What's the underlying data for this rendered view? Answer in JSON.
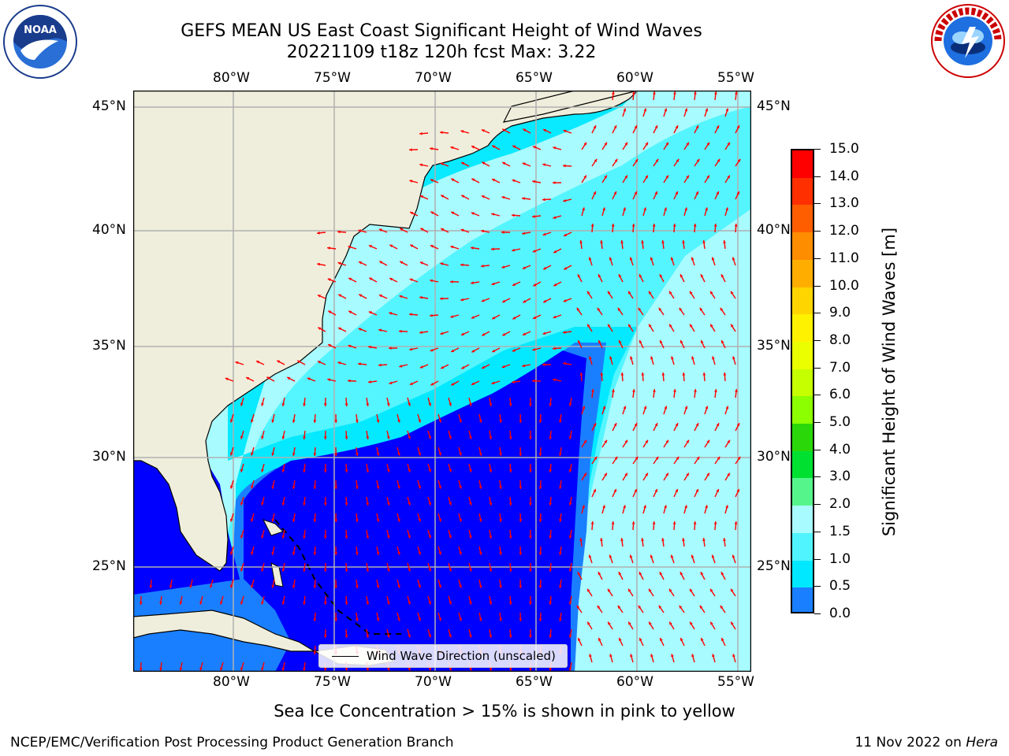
{
  "title": {
    "line1": "GEFS MEAN US East Coast Significant Height of Wind Waves",
    "line2": "20221109 t18z 120h fcst   Max: 3.22"
  },
  "logos": {
    "left": {
      "name": "noaa-logo",
      "text": "NOAA"
    },
    "right": {
      "name": "nws-logo",
      "text": "NATIONAL WEATHER SERVICE"
    }
  },
  "map": {
    "lon_labels": [
      "80°W",
      "75°W",
      "70°W",
      "65°W",
      "60°W",
      "55°W"
    ],
    "lat_labels": [
      "45°N",
      "40°N",
      "35°N",
      "30°N",
      "25°N"
    ],
    "legend_label": "Wind Wave Direction (unscaled)",
    "colors": {
      "land": "#efeedc",
      "c0": "#0000ff",
      "c05": "#1a7fff",
      "c1": "#00e8ff",
      "c15": "#4ff4ff",
      "c2": "#a8fbff",
      "c3": "#56f58c",
      "grid": "#b0b0b0",
      "arrow": "#ff0000"
    }
  },
  "colorbar": {
    "title": "Significant Height of Wind Waves [m]",
    "ticks": [
      "15.0",
      "14.0",
      "13.0",
      "12.0",
      "11.0",
      "10.0",
      "9.0",
      "8.0",
      "7.0",
      "6.0",
      "5.0",
      "4.0",
      "3.0",
      "2.0",
      "1.5",
      "1.0",
      "0.5",
      "0.0"
    ],
    "colors": [
      "#ff0000",
      "#ff2f00",
      "#ff5e00",
      "#ff8d00",
      "#ffae00",
      "#ffd500",
      "#fff200",
      "#ecff00",
      "#c6ff00",
      "#8cff00",
      "#2ad80a",
      "#00e031",
      "#56f58c",
      "#a8fbff",
      "#4ff4ff",
      "#00e8ff",
      "#1a7fff",
      "#0000ff"
    ]
  },
  "footer": {
    "sea_ice_note": "Sea Ice Concentration > 15% is shown in pink to yellow",
    "credit_left": "NCEP/EMC/Verification Post Processing Product Generation Branch",
    "credit_right_date": "11 Nov 2022 on ",
    "credit_right_host": "Hera"
  }
}
